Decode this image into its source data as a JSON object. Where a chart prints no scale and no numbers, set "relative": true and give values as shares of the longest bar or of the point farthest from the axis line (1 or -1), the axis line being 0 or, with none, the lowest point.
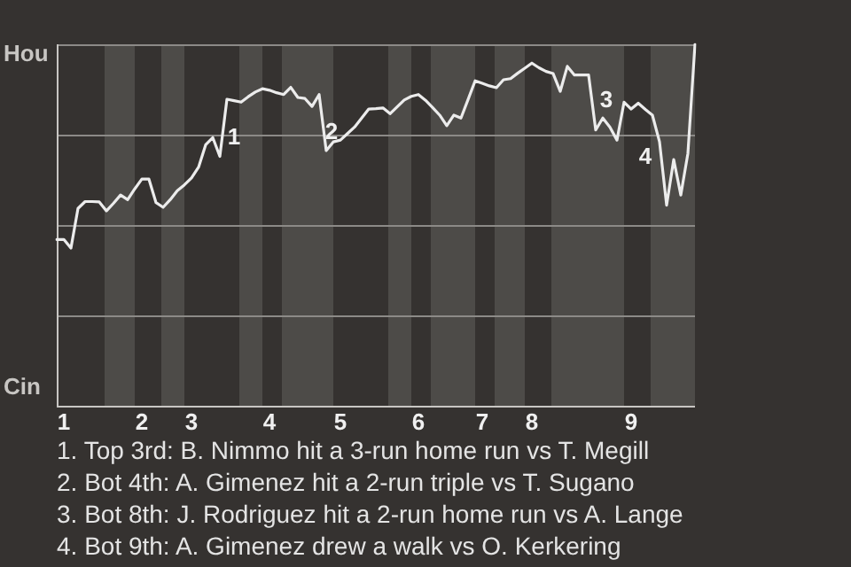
{
  "chart_data": {
    "type": "line",
    "relative": true,
    "categories": [
      null,
      "1",
      null,
      null,
      null,
      null,
      null,
      null,
      null,
      null,
      null,
      null,
      "2",
      null,
      null,
      null,
      null,
      null,
      null,
      "3",
      null,
      null,
      null,
      null,
      null,
      null,
      null,
      null,
      null,
      null,
      "4",
      null,
      null,
      null,
      null,
      null,
      null,
      null,
      null,
      null,
      "5",
      null,
      null,
      null,
      null,
      null,
      null,
      null,
      null,
      null,
      null,
      "6",
      null,
      null,
      null,
      null,
      null,
      null,
      null,
      null,
      "7",
      null,
      null,
      null,
      null,
      null,
      null,
      "8",
      null,
      null,
      null,
      null,
      null,
      null,
      null,
      null,
      null,
      null,
      null,
      null,
      null,
      "9",
      null,
      null,
      null,
      null,
      null,
      null,
      null,
      null,
      null
    ],
    "series": [
      {
        "color": "#ececec",
        "values": [
          0.46,
          0.46,
          0.436,
          0.546,
          0.565,
          0.565,
          0.564,
          0.539,
          0.56,
          0.583,
          0.57,
          0.6,
          0.627,
          0.627,
          0.562,
          0.549,
          0.57,
          0.595,
          0.611,
          0.63,
          0.66,
          0.722,
          0.742,
          0.69,
          0.848,
          0.844,
          0.84,
          0.855,
          0.868,
          0.877,
          0.873,
          0.866,
          0.861,
          0.881,
          0.853,
          0.85,
          0.828,
          0.861,
          0.706,
          0.73,
          0.735,
          0.753,
          0.771,
          0.796,
          0.821,
          0.822,
          0.824,
          0.808,
          0.827,
          0.846,
          0.856,
          0.861,
          0.845,
          0.825,
          0.804,
          0.775,
          0.804,
          0.796,
          0.847,
          0.899,
          0.892,
          0.885,
          0.88,
          0.902,
          0.905,
          0.92,
          0.934,
          0.948,
          0.935,
          0.925,
          0.919,
          0.87,
          0.939,
          0.915,
          0.915,
          0.915,
          0.763,
          0.796,
          0.771,
          0.735,
          0.84,
          0.821,
          0.837,
          0.82,
          0.804,
          0.73,
          0.555,
          0.681,
          0.583,
          0.698,
          1
        ]
      }
    ],
    "ref_lines": [
      {
        "axis": "y",
        "value": 0.25,
        "color": "#8c8a87"
      },
      {
        "axis": "y",
        "value": 0.5,
        "color": "#8c8a87"
      },
      {
        "axis": "y",
        "value": 0.75,
        "color": "#8c8a87"
      },
      {
        "axis": "y",
        "value": 1,
        "color": "#8c8a87"
      }
    ],
    "annotations": [
      "Hou",
      "Cin",
      "1",
      "2",
      "3",
      "4",
      "1. Top 3rd: B. Nimmo hit a 3-run home run vs T. Megill",
      "2. Bot 4th: A. Gimenez hit a 2-run triple vs T. Sugano",
      "3. Bot 8th: J. Rodriguez hit a 2-run home run vs A. Lange",
      "4. Bot 9th: A. Gimenez drew a walk vs O. Kerkering"
    ]
  }
}
